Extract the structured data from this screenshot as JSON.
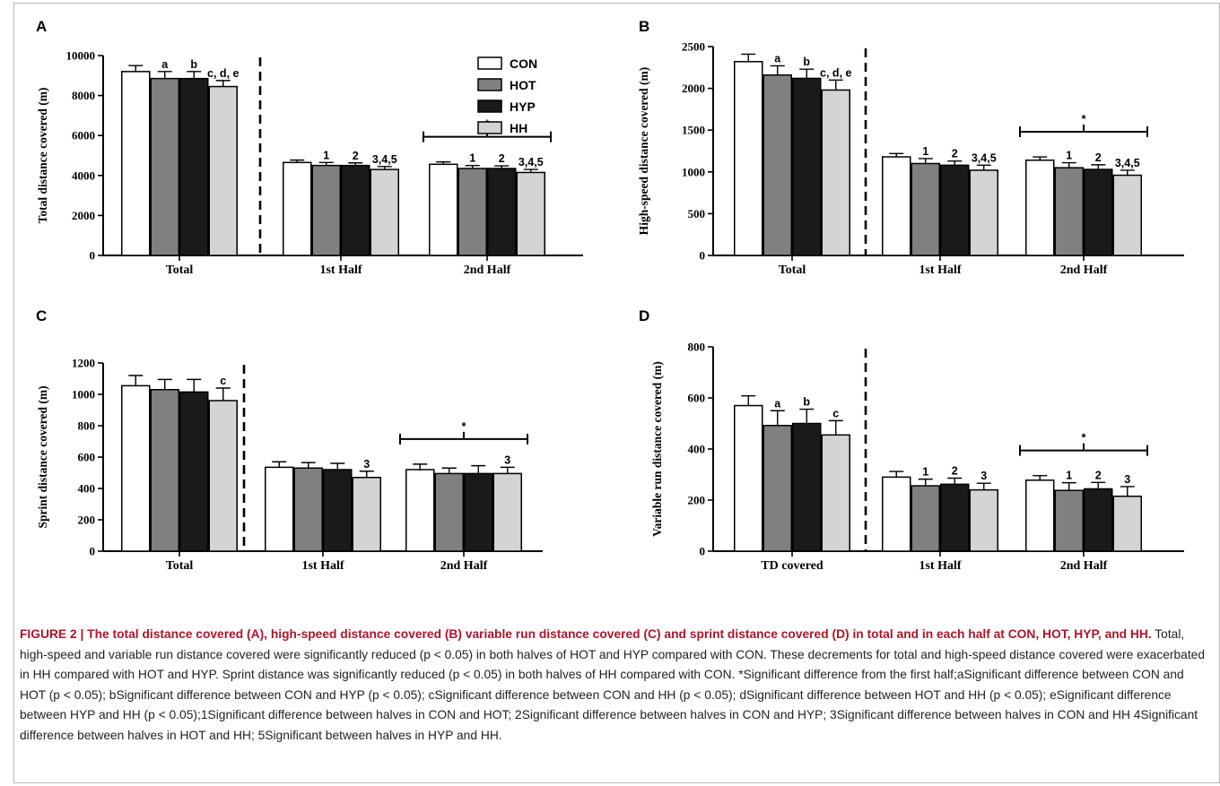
{
  "caption": {
    "label": "FIGURE 2 | The total distance covered (A), high-speed distance covered (B) variable run distance covered (C) and sprint distance covered (D) in total and in each half at CON, HOT, HYP, and HH.",
    "body": "Total, high-speed and variable run distance covered were significantly reduced (p < 0.05) in both halves of HOT and HYP compared with CON. These decrements for total and high-speed distance covered were exacerbated in HH compared with HOT and HYP. Sprint distance was significantly reduced (p < 0.05) in both halves of HH compared with CON. *Significant difference from the first half;aSignificant difference between CON and HOT (p < 0.05); bSignificant difference between CON and HYP (p < 0.05); cSignificant difference between CON and HH (p < 0.05); dSignificant difference between HOT and HH (p < 0.05); eSignificant difference between HYP and HH (p < 0.05);1Significant difference between halves in CON and HOT; 2Significant difference between halves in CON and HYP; 3Significant difference between halves in CON and HH 4Significant difference between halves in HOT and HH; 5Significant between halves in HYP and HH."
  },
  "colors": {
    "CON": "#ffffff",
    "HOT": "#808080",
    "HYP": "#1a1a1a",
    "HH": "#d4d4d4",
    "caption_label": "#b0132a"
  },
  "chart_data": [
    {
      "panel": "A",
      "type": "bar",
      "ylabel": "Total distance covered (m)",
      "ylim": [
        0,
        10000
      ],
      "yticks": [
        0,
        2000,
        4000,
        6000,
        8000,
        10000
      ],
      "categories": [
        "Total",
        "1st Half",
        "2nd Half"
      ],
      "series": [
        {
          "name": "CON",
          "values": [
            9200,
            4650,
            4560
          ],
          "errors": [
            300,
            120,
            120
          ]
        },
        {
          "name": "HOT",
          "values": [
            8850,
            4500,
            4350
          ],
          "errors": [
            350,
            150,
            150
          ]
        },
        {
          "name": "HYP",
          "values": [
            8850,
            4500,
            4350
          ],
          "errors": [
            350,
            130,
            130
          ]
        },
        {
          "name": "HH",
          "values": [
            8450,
            4300,
            4150
          ],
          "errors": [
            300,
            150,
            150
          ]
        }
      ],
      "annotations": [
        [
          "a",
          "b",
          "c, d, e"
        ],
        [
          "1",
          "2",
          "3,4,5"
        ],
        [
          "1",
          "2",
          "3,4,5"
        ]
      ],
      "bracket": {
        "category": "2nd Half",
        "label": "*"
      },
      "legend": {
        "entries": [
          "CON",
          "HOT",
          "HYP",
          "HH"
        ],
        "position": "top-right"
      },
      "divider_after_category": 0
    },
    {
      "panel": "B",
      "type": "bar",
      "ylabel": "High-speed distance covered (m)",
      "ylim": [
        0,
        2500
      ],
      "yticks": [
        0,
        500,
        1000,
        1500,
        2000,
        2500
      ],
      "categories": [
        "Total",
        "1st Half",
        "2nd Half"
      ],
      "series": [
        {
          "name": "CON",
          "values": [
            2320,
            1180,
            1140
          ],
          "errors": [
            90,
            40,
            40
          ]
        },
        {
          "name": "HOT",
          "values": [
            2160,
            1100,
            1050
          ],
          "errors": [
            110,
            60,
            60
          ]
        },
        {
          "name": "HYP",
          "values": [
            2120,
            1080,
            1030
          ],
          "errors": [
            110,
            50,
            55
          ]
        },
        {
          "name": "HH",
          "values": [
            1980,
            1020,
            960
          ],
          "errors": [
            120,
            60,
            60
          ]
        }
      ],
      "annotations": [
        [
          "a",
          "b",
          "c, d, e"
        ],
        [
          "1",
          "2",
          "3,4,5"
        ],
        [
          "1",
          "2",
          "3,4,5"
        ]
      ],
      "bracket": {
        "category": "2nd Half",
        "label": "*"
      },
      "divider_after_category": 0
    },
    {
      "panel": "C",
      "type": "bar",
      "ylabel": "Sprint distance covered (m)",
      "ylim": [
        0,
        1200
      ],
      "yticks": [
        0,
        200,
        400,
        600,
        800,
        1000,
        1200
      ],
      "categories": [
        "Total",
        "1st Half",
        "2nd Half"
      ],
      "series": [
        {
          "name": "CON",
          "values": [
            1055,
            535,
            520
          ],
          "errors": [
            65,
            35,
            35
          ]
        },
        {
          "name": "HOT",
          "values": [
            1030,
            530,
            495
          ],
          "errors": [
            65,
            35,
            35
          ]
        },
        {
          "name": "HYP",
          "values": [
            1015,
            520,
            495
          ],
          "errors": [
            80,
            40,
            50
          ]
        },
        {
          "name": "HH",
          "values": [
            960,
            470,
            495
          ],
          "errors": [
            80,
            40,
            40
          ]
        }
      ],
      "annotations": [
        [
          "",
          "",
          "c"
        ],
        [
          "",
          "",
          "3"
        ],
        [
          "",
          "",
          "3"
        ]
      ],
      "bracket": {
        "category": "2nd Half",
        "label": "*"
      },
      "divider_after_category": 0
    },
    {
      "panel": "D",
      "type": "bar",
      "ylabel": "Variable run distance covered (m)",
      "ylim": [
        0,
        800
      ],
      "yticks": [
        0,
        200,
        400,
        600,
        800
      ],
      "categories": [
        "TD covered",
        "1st Half",
        "2nd Half"
      ],
      "series": [
        {
          "name": "CON",
          "values": [
            570,
            290,
            278
          ],
          "errors": [
            38,
            22,
            18
          ]
        },
        {
          "name": "HOT",
          "values": [
            492,
            256,
            238
          ],
          "errors": [
            58,
            26,
            30
          ]
        },
        {
          "name": "HYP",
          "values": [
            500,
            262,
            244
          ],
          "errors": [
            56,
            24,
            25
          ]
        },
        {
          "name": "HH",
          "values": [
            455,
            240,
            215
          ],
          "errors": [
            56,
            26,
            38
          ]
        }
      ],
      "annotations": [
        [
          "a",
          "b",
          "c"
        ],
        [
          "1",
          "2",
          "3"
        ],
        [
          "1",
          "2",
          "3"
        ]
      ],
      "bracket": {
        "category": "2nd Half",
        "label": "*"
      },
      "divider_after_category": 0
    }
  ]
}
